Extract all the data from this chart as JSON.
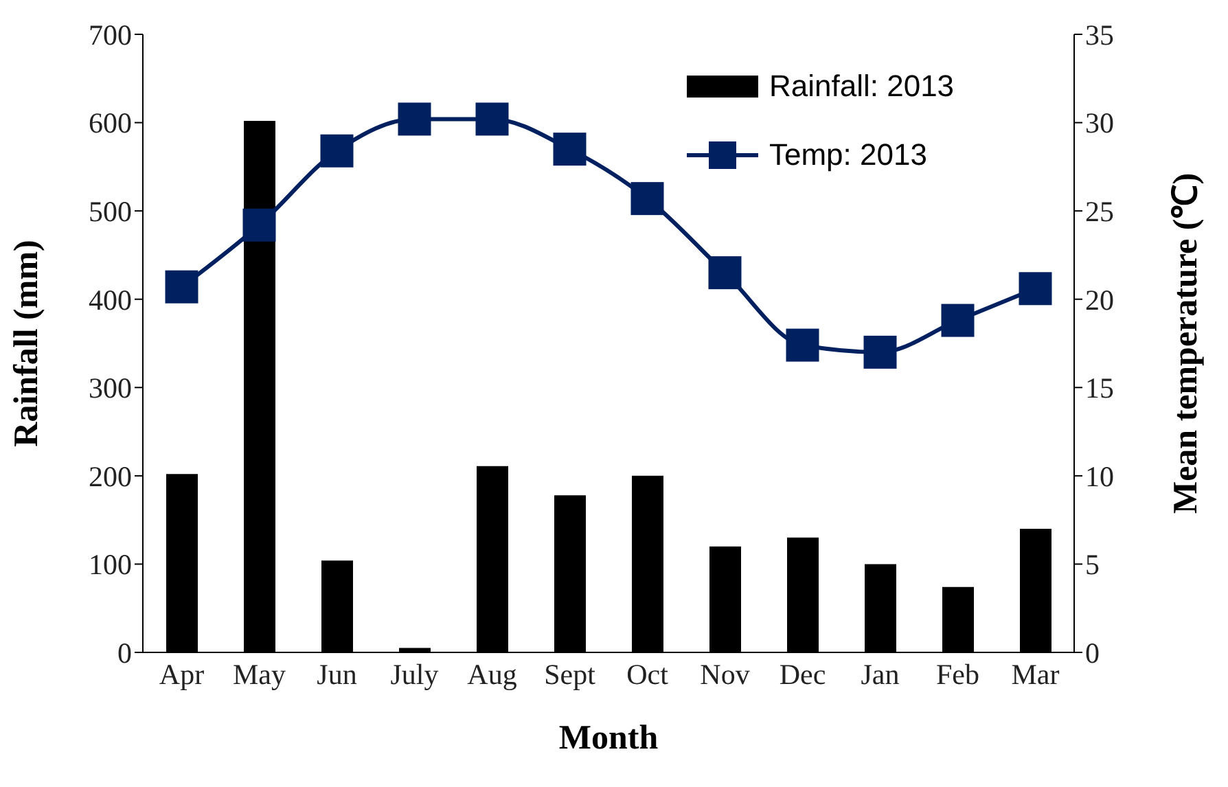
{
  "chart_data": {
    "type": "bar",
    "xlabel": "Month",
    "ylabel": "Rainfall (mm)",
    "y2label": "Mean temperature (℃)",
    "categories": [
      "Apr",
      "May",
      "Jun",
      "July",
      "Aug",
      "Sept",
      "Oct",
      "Nov",
      "Dec",
      "Jan",
      "Feb",
      "Mar"
    ],
    "series": [
      {
        "name": "Rainfall: 2013",
        "color": "#000000",
        "values": [
          202,
          602,
          104,
          5,
          211,
          178,
          200,
          120,
          130,
          100,
          74,
          140
        ]
      },
      {
        "name": "Temp: 2013",
        "type": "line",
        "axis": "y2",
        "color": "#002060",
        "marker": "square",
        "values": [
          20.7,
          24.2,
          28.4,
          30.2,
          30.2,
          28.5,
          25.7,
          21.5,
          17.4,
          17.0,
          18.8,
          20.6
        ]
      }
    ],
    "ylim": [
      0,
      700
    ],
    "yticks": [
      0,
      100,
      200,
      300,
      400,
      500,
      600,
      700
    ],
    "y2lim": [
      0,
      35
    ],
    "y2ticks": [
      0,
      5,
      10,
      15,
      20,
      25,
      30,
      35
    ],
    "grid": false,
    "legend": "top right"
  }
}
